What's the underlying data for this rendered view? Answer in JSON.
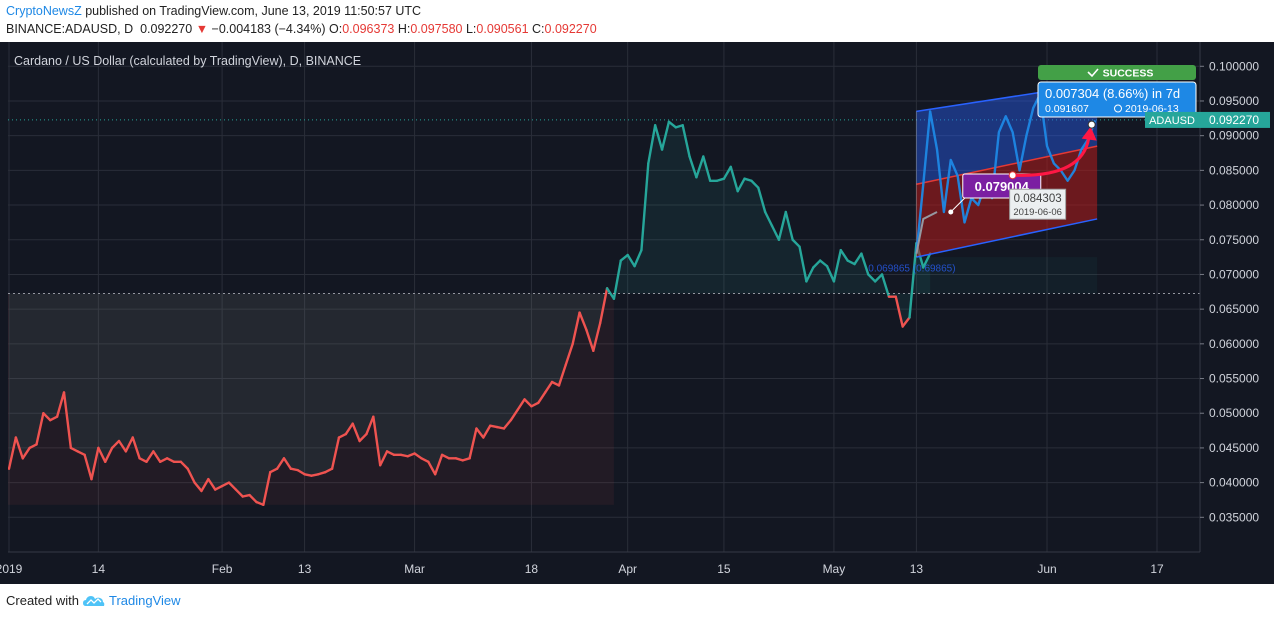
{
  "header": {
    "publisher": "CryptoNewsZ",
    "published_text": "published on TradingView.com, June 13, 2019 11:50:57 UTC",
    "symbol": "BINANCE:ADAUSD, D",
    "last": "0.092270",
    "change_arrow": "▼",
    "change": "−0.004183 (−4.34%)",
    "open_label": "O:",
    "open": "0.096373",
    "high_label": "H:",
    "high": "0.097580",
    "low_label": "L:",
    "low": "0.090561",
    "close_label": "C:",
    "close": "0.092270"
  },
  "footer": {
    "created_with": "Created with",
    "brand": "TradingView",
    "logo_icon": "tradingview-cloud-icon"
  },
  "colors": {
    "background": "#131722",
    "up": "#26a69a",
    "down": "#ef5350",
    "line_gray": "#787b86",
    "forecast_blue": "#2962ff",
    "forecast_red": "#b71c1c",
    "label_blue": "#1e88e5",
    "label_purple": "#7b1fa2",
    "success_green": "#43a047",
    "price_tag": "#26a69a"
  },
  "chart_data": {
    "type": "line",
    "title": "Cardano / US Dollar (calculated by TradingView), D, BINANCE",
    "symbol_tag": "ADAUSD",
    "current_price_tag": "0.092270",
    "ylim": [
      0.03,
      0.1035
    ],
    "y_ticks": [
      "0.035000",
      "0.040000",
      "0.045000",
      "0.050000",
      "0.055000",
      "0.060000",
      "0.065000",
      "0.070000",
      "0.075000",
      "0.080000",
      "0.085000",
      "0.090000",
      "0.095000",
      "0.100000"
    ],
    "x_ticks": [
      {
        "label": "2019",
        "day": 0
      },
      {
        "label": "14",
        "day": 13
      },
      {
        "label": "Feb",
        "day": 31
      },
      {
        "label": "13",
        "day": 43
      },
      {
        "label": "Mar",
        "day": 59
      },
      {
        "label": "18",
        "day": 76
      },
      {
        "label": "Apr",
        "day": 90
      },
      {
        "label": "15",
        "day": 104
      },
      {
        "label": "May",
        "day": 120
      },
      {
        "label": "13",
        "day": 132
      },
      {
        "label": "Jun",
        "day": 151
      },
      {
        "label": "17",
        "day": 167
      }
    ],
    "dotted_level": 0.06725,
    "series": [
      {
        "values": [
          0.042,
          0.0465,
          0.0435,
          0.045,
          0.0455,
          0.05,
          0.049,
          0.0495,
          0.053,
          0.045,
          0.0445,
          0.044,
          0.0405,
          0.045,
          0.043,
          0.045,
          0.046,
          0.0445,
          0.0465,
          0.0435,
          0.043,
          0.0445,
          0.043,
          0.0435,
          0.043,
          0.043,
          0.042,
          0.04,
          0.0388,
          0.0405,
          0.039,
          0.0395,
          0.04,
          0.039,
          0.038,
          0.0382,
          0.0372,
          0.0368,
          0.0415,
          0.042,
          0.0435,
          0.042,
          0.0418,
          0.0412,
          0.041,
          0.0412,
          0.0415,
          0.042,
          0.0465,
          0.047,
          0.0485,
          0.046,
          0.047,
          0.0495,
          0.0425,
          0.0445,
          0.044,
          0.044,
          0.0438,
          0.0442,
          0.0435,
          0.043,
          0.0412,
          0.044,
          0.0435,
          0.0435,
          0.0432,
          0.0435,
          0.0478,
          0.0465,
          0.0482,
          0.048,
          0.0478,
          0.049,
          0.0505,
          0.052,
          0.051,
          0.0515,
          0.053,
          0.0545,
          0.054,
          0.057,
          0.06,
          0.0645,
          0.062,
          0.059,
          0.063,
          0.068,
          0.0665,
          0.072,
          0.0728,
          0.0712,
          0.0735,
          0.086,
          0.0915,
          0.088,
          0.092,
          0.0912,
          0.0915,
          0.087,
          0.084,
          0.087,
          0.0835,
          0.0835,
          0.0838,
          0.0855,
          0.082,
          0.0838,
          0.0835,
          0.0825,
          0.079,
          0.077,
          0.075,
          0.079,
          0.075,
          0.074,
          0.069,
          0.071,
          0.072,
          0.0712,
          0.069,
          0.0735,
          0.072,
          0.0715,
          0.073,
          0.07,
          0.069,
          0.07,
          0.0668,
          0.0668,
          0.0625,
          0.0638,
          0.0745,
          0.071,
          0.073
        ]
      }
    ],
    "forecast_line": {
      "start_day": 132,
      "values": [
        0.073,
        0.083,
        0.0935,
        0.088,
        0.079,
        0.0865,
        0.0842,
        0.0775,
        0.081,
        0.08,
        0.083,
        0.081,
        0.0905,
        0.0928,
        0.0905,
        0.085,
        0.09,
        0.094,
        0.096,
        0.0885,
        0.086,
        0.085,
        0.0835,
        0.085,
        0.088,
        0.0895,
        0.0922
      ]
    },
    "annotations": {
      "low_label": "0.079004",
      "entry_price": "0.084303",
      "entry_date": "2019-06-06",
      "result_badge": "SUCCESS",
      "result_change": "0.007304 (8.66%) in 7d",
      "result_price": "0.091607",
      "result_date": "2019-06-13",
      "faint_channel_text": "0.069865 (0.69865)"
    }
  }
}
